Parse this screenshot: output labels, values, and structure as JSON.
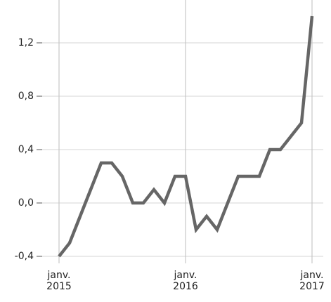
{
  "chart_data": {
    "type": "line",
    "categories": [
      "janv.\n2015",
      null,
      null,
      null,
      null,
      null,
      null,
      null,
      null,
      null,
      null,
      null,
      "janv.\n2016",
      null,
      null,
      null,
      null,
      null,
      null,
      null,
      null,
      null,
      null,
      null,
      "janv.\n2017"
    ],
    "series": [
      {
        "color": "#666666",
        "values": [
          -0.4,
          -0.3,
          -0.1,
          0.1,
          0.3,
          0.3,
          0.2,
          0.0,
          0.0,
          0.1,
          0.0,
          0.2,
          0.2,
          -0.2,
          -0.1,
          -0.2,
          0.0,
          0.2,
          0.2,
          0.2,
          0.4,
          0.4,
          0.5,
          0.6,
          1.4
        ]
      }
    ],
    "ylim": [
      -0.4,
      1.5
    ],
    "yticks": [
      {
        "value": -0.4,
        "label": "-0,4"
      },
      {
        "value": 0,
        "label": "0,0"
      },
      {
        "value": 0.4,
        "label": "0,4"
      },
      {
        "value": 0.8,
        "label": "0,8"
      },
      {
        "value": 1.2,
        "label": "1,2"
      }
    ],
    "grid": true
  }
}
